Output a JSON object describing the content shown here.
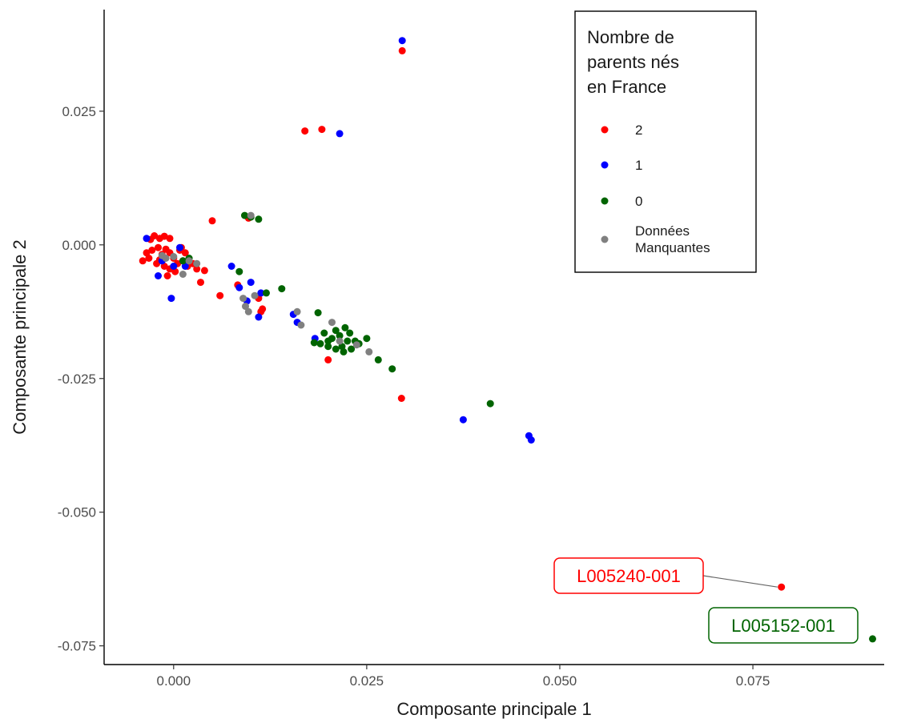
{
  "chart_data": {
    "type": "scatter",
    "xlabel": "Composante principale 1",
    "ylabel": "Composante principale 2",
    "xlim": [
      -0.009,
      0.092
    ],
    "ylim": [
      -0.0785,
      0.044
    ],
    "x_ticks": [
      0.0,
      0.025,
      0.05,
      0.075
    ],
    "x_tick_labels": [
      "0.000",
      "0.025",
      "0.050",
      "0.075"
    ],
    "y_ticks": [
      0.025,
      0.0,
      -0.025,
      -0.05,
      -0.075
    ],
    "y_tick_labels": [
      "0.025",
      "0.000",
      "-0.025",
      "-0.050",
      "-0.075"
    ],
    "grid": false,
    "legend": {
      "title": [
        "Nombre de",
        "parents nés",
        "en France"
      ],
      "placement": "top-right",
      "entries": [
        {
          "label": [
            "2"
          ],
          "color": "#ff0000"
        },
        {
          "label": [
            "1"
          ],
          "color": "#0000ff"
        },
        {
          "label": [
            "0"
          ],
          "color": "#006400"
        },
        {
          "label": [
            "Données",
            "Manquantes"
          ],
          "color": "#808080"
        }
      ]
    },
    "series": [
      {
        "key": "2",
        "color": "#ff0000",
        "points": [
          [
            0.0296,
            0.0363
          ],
          [
            0.017,
            0.0213
          ],
          [
            0.0192,
            0.0216
          ],
          [
            0.005,
            0.0045
          ],
          [
            0.0097,
            0.005
          ],
          [
            -0.003,
            0.001
          ],
          [
            -0.0025,
            0.0017
          ],
          [
            -0.0018,
            0.0012
          ],
          [
            -0.0012,
            0.0016
          ],
          [
            -0.0005,
            0.0012
          ],
          [
            -0.0028,
            -0.001
          ],
          [
            -0.002,
            -0.0005
          ],
          [
            -0.0015,
            -0.0018
          ],
          [
            -0.001,
            -0.0008
          ],
          [
            -0.0005,
            -0.0015
          ],
          [
            0.0,
            -0.0025
          ],
          [
            0.0005,
            -0.0035
          ],
          [
            -0.0032,
            -0.0025
          ],
          [
            -0.004,
            -0.003
          ],
          [
            -0.0022,
            -0.0035
          ],
          [
            -0.0012,
            -0.004
          ],
          [
            -0.0005,
            -0.0045
          ],
          [
            0.0002,
            -0.005
          ],
          [
            0.0008,
            -0.001
          ],
          [
            0.0015,
            -0.0015
          ],
          [
            -0.0035,
            -0.0015
          ],
          [
            -0.0018,
            -0.0028
          ],
          [
            0.0012,
            -0.003
          ],
          [
            0.0025,
            -0.0035
          ],
          [
            0.003,
            -0.0045
          ],
          [
            0.004,
            -0.0048
          ],
          [
            0.0035,
            -0.007
          ],
          [
            -0.0008,
            -0.0058
          ],
          [
            0.001,
            -0.0005
          ],
          [
            0.0018,
            -0.004
          ],
          [
            0.006,
            -0.0095
          ],
          [
            0.0083,
            -0.0075
          ],
          [
            0.011,
            -0.01
          ],
          [
            0.0113,
            -0.0125
          ],
          [
            0.0115,
            -0.012
          ],
          [
            0.02,
            -0.0215
          ],
          [
            0.0295,
            -0.0287
          ],
          [
            0.0787,
            -0.064
          ]
        ]
      },
      {
        "key": "1",
        "color": "#0000ff",
        "points": [
          [
            0.0296,
            0.0382
          ],
          [
            0.0215,
            0.0208
          ],
          [
            -0.0035,
            0.0012
          ],
          [
            -0.0015,
            -0.003
          ],
          [
            -0.002,
            -0.0058
          ],
          [
            -0.0003,
            -0.01
          ],
          [
            0.0008,
            -0.0005
          ],
          [
            0.0015,
            -0.004
          ],
          [
            0.0,
            -0.004
          ],
          [
            0.0075,
            -0.004
          ],
          [
            0.0085,
            -0.008
          ],
          [
            0.01,
            -0.007
          ],
          [
            0.0095,
            -0.0105
          ],
          [
            0.011,
            -0.0135
          ],
          [
            0.0113,
            -0.009
          ],
          [
            0.0155,
            -0.013
          ],
          [
            0.016,
            -0.0145
          ],
          [
            0.0183,
            -0.0175
          ],
          [
            0.0375,
            -0.0327
          ],
          [
            0.046,
            -0.0357
          ],
          [
            0.0463,
            -0.0365
          ]
        ]
      },
      {
        "key": "0",
        "color": "#006400",
        "points": [
          [
            0.0092,
            0.0055
          ],
          [
            0.01,
            0.0052
          ],
          [
            0.011,
            0.0048
          ],
          [
            0.0012,
            -0.003
          ],
          [
            0.002,
            -0.0025
          ],
          [
            0.0085,
            -0.005
          ],
          [
            0.012,
            -0.009
          ],
          [
            0.014,
            -0.0082
          ],
          [
            0.0187,
            -0.0127
          ],
          [
            0.019,
            -0.0185
          ],
          [
            0.02,
            -0.018
          ],
          [
            0.0195,
            -0.0165
          ],
          [
            0.0205,
            -0.0175
          ],
          [
            0.021,
            -0.016
          ],
          [
            0.0215,
            -0.017
          ],
          [
            0.0218,
            -0.019
          ],
          [
            0.0222,
            -0.0155
          ],
          [
            0.0225,
            -0.018
          ],
          [
            0.023,
            -0.0195
          ],
          [
            0.0228,
            -0.0165
          ],
          [
            0.0235,
            -0.018
          ],
          [
            0.024,
            -0.0185
          ],
          [
            0.021,
            -0.0195
          ],
          [
            0.022,
            -0.02
          ],
          [
            0.02,
            -0.019
          ],
          [
            0.025,
            -0.0175
          ],
          [
            0.0265,
            -0.0215
          ],
          [
            0.0283,
            -0.0232
          ],
          [
            0.041,
            -0.0297
          ],
          [
            0.0182,
            -0.0183
          ],
          [
            0.0905,
            -0.0737
          ]
        ]
      },
      {
        "key": "Données Manquantes",
        "color": "#808080",
        "points": [
          [
            -0.0015,
            -0.002
          ],
          [
            0.0,
            -0.0022
          ],
          [
            -0.001,
            -0.0025
          ],
          [
            0.003,
            -0.0035
          ],
          [
            0.002,
            -0.003
          ],
          [
            0.0012,
            -0.0055
          ],
          [
            0.01,
            0.0055
          ],
          [
            0.009,
            -0.01
          ],
          [
            0.0093,
            -0.0115
          ],
          [
            0.0097,
            -0.0125
          ],
          [
            0.0105,
            -0.0095
          ],
          [
            0.016,
            -0.0125
          ],
          [
            0.0165,
            -0.015
          ],
          [
            0.0205,
            -0.0145
          ],
          [
            0.0237,
            -0.0187
          ],
          [
            0.0253,
            -0.02
          ],
          [
            0.0215,
            -0.018
          ]
        ]
      }
    ],
    "annotations": [
      {
        "text": "L005240-001",
        "x": 0.0787,
        "y": -0.064,
        "color": "#ff0000"
      },
      {
        "text": "L005152-001",
        "x": 0.0905,
        "y": -0.0737,
        "color": "#006400"
      }
    ]
  }
}
